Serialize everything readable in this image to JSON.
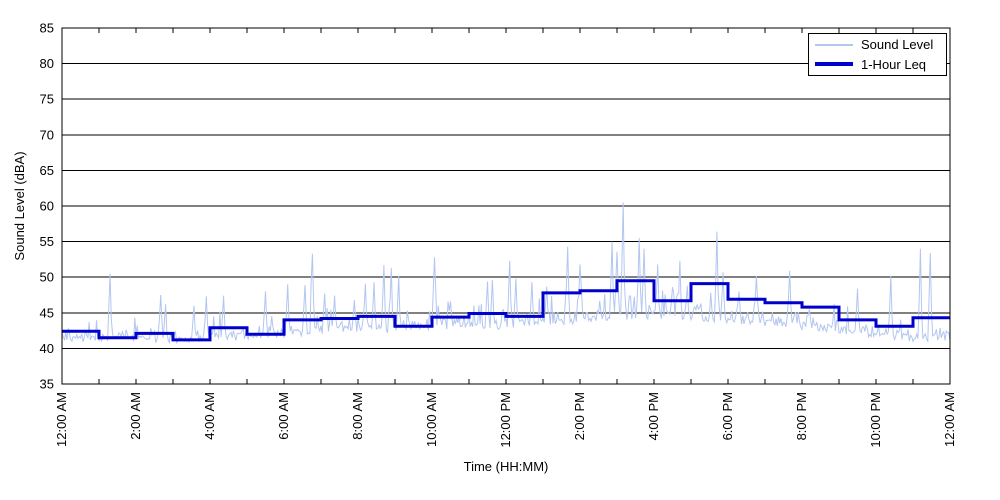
{
  "chart_data": {
    "type": "line",
    "title": "",
    "xlabel": "Time (HH:MM)",
    "ylabel": "Sound Level (dBA)",
    "ylim": [
      35,
      85
    ],
    "y_ticks": [
      35,
      40,
      45,
      50,
      55,
      60,
      65,
      70,
      75,
      80,
      85
    ],
    "xlim_hours": [
      0,
      24
    ],
    "x_minor_tick_every_hours": 1,
    "x_tick_hours": [
      0,
      2,
      4,
      6,
      8,
      10,
      12,
      14,
      16,
      18,
      20,
      22,
      24
    ],
    "x_tick_labels": [
      "12:00 AM",
      "2:00 AM",
      "4:00 AM",
      "6:00 AM",
      "8:00 AM",
      "10:00 AM",
      "12:00 PM",
      "2:00 PM",
      "4:00 PM",
      "6:00 PM",
      "8:00 PM",
      "10:00 PM",
      "12:00 AM"
    ],
    "grid": "horizontal-black",
    "legend": {
      "position": "top-right",
      "entries": [
        "Sound Level",
        "1-Hour Leq"
      ]
    },
    "series": [
      {
        "name": "Sound Level",
        "kind": "ambient-noisy-trace",
        "color": "#b3c6f0",
        "width": 1
      },
      {
        "name": "1-Hour Leq",
        "kind": "hourly-step",
        "color": "#0000cc",
        "width": 3,
        "hours": [
          0,
          1,
          2,
          3,
          4,
          5,
          6,
          7,
          8,
          9,
          10,
          11,
          12,
          13,
          14,
          15,
          16,
          17,
          18,
          19,
          20,
          21,
          22,
          23
        ],
        "values": [
          42.4,
          41.5,
          42.1,
          41.2,
          42.9,
          42.0,
          44.0,
          44.2,
          44.5,
          43.1,
          44.4,
          44.9,
          44.5,
          47.8,
          48.1,
          49.5,
          46.7,
          49.1,
          46.9,
          46.4,
          45.8,
          44.0,
          43.1,
          44.3
        ]
      }
    ],
    "ambient_model": {
      "description": "Fine-resolution sound-level trace: per-hour noise-floor envelope plus discrete event spikes read from the plot (t = decimal hour, level dBA).",
      "sample_minutes": 2,
      "seed": 7,
      "base_by_hour": [
        40.8,
        40.6,
        40.7,
        40.4,
        40.8,
        40.9,
        41.3,
        41.7,
        42.0,
        42.0,
        42.2,
        42.4,
        42.5,
        43.0,
        43.3,
        43.8,
        43.8,
        43.6,
        43.3,
        42.8,
        42.4,
        41.9,
        41.3,
        40.7
      ],
      "jitter": 1.1,
      "bump_prob": 0.07,
      "day_extra_bump_prob": 0.06,
      "day_hours": [
        6,
        20
      ],
      "bump_amp": 2.8,
      "spikes": [
        [
          1.3,
          50.5
        ],
        [
          2.65,
          47.5
        ],
        [
          2.8,
          46.2
        ],
        [
          3.55,
          46.0
        ],
        [
          3.9,
          47.3
        ],
        [
          4.35,
          47.4
        ],
        [
          5.5,
          48.0
        ],
        [
          6.1,
          49.0
        ],
        [
          6.55,
          48.9
        ],
        [
          6.75,
          53.3
        ],
        [
          7.1,
          47.7
        ],
        [
          7.35,
          47.4
        ],
        [
          7.9,
          46.8
        ],
        [
          8.2,
          49.1
        ],
        [
          8.45,
          49.3
        ],
        [
          8.7,
          51.7
        ],
        [
          8.9,
          51.3
        ],
        [
          9.1,
          50.2
        ],
        [
          10.05,
          52.8
        ],
        [
          10.5,
          46.6
        ],
        [
          11.5,
          49.4
        ],
        [
          11.62,
          49.6
        ],
        [
          12.1,
          52.3
        ],
        [
          12.25,
          49.8
        ],
        [
          12.7,
          49.3
        ],
        [
          13.1,
          48.7
        ],
        [
          13.65,
          54.3
        ],
        [
          14.0,
          51.8
        ],
        [
          14.85,
          55.0
        ],
        [
          15.0,
          53.6
        ],
        [
          15.17,
          60.5
        ],
        [
          15.6,
          55.5
        ],
        [
          15.72,
          54.0
        ],
        [
          16.1,
          51.8
        ],
        [
          16.5,
          48.6
        ],
        [
          16.7,
          52.3
        ],
        [
          16.9,
          48.8
        ],
        [
          17.7,
          56.4
        ],
        [
          17.85,
          50.7
        ],
        [
          18.3,
          48.0
        ],
        [
          18.75,
          50.2
        ],
        [
          19.65,
          50.9
        ],
        [
          20.2,
          45.5
        ],
        [
          21.5,
          48.4
        ],
        [
          22.4,
          50.2
        ],
        [
          23.2,
          54.0
        ],
        [
          23.45,
          53.4
        ]
      ]
    }
  }
}
